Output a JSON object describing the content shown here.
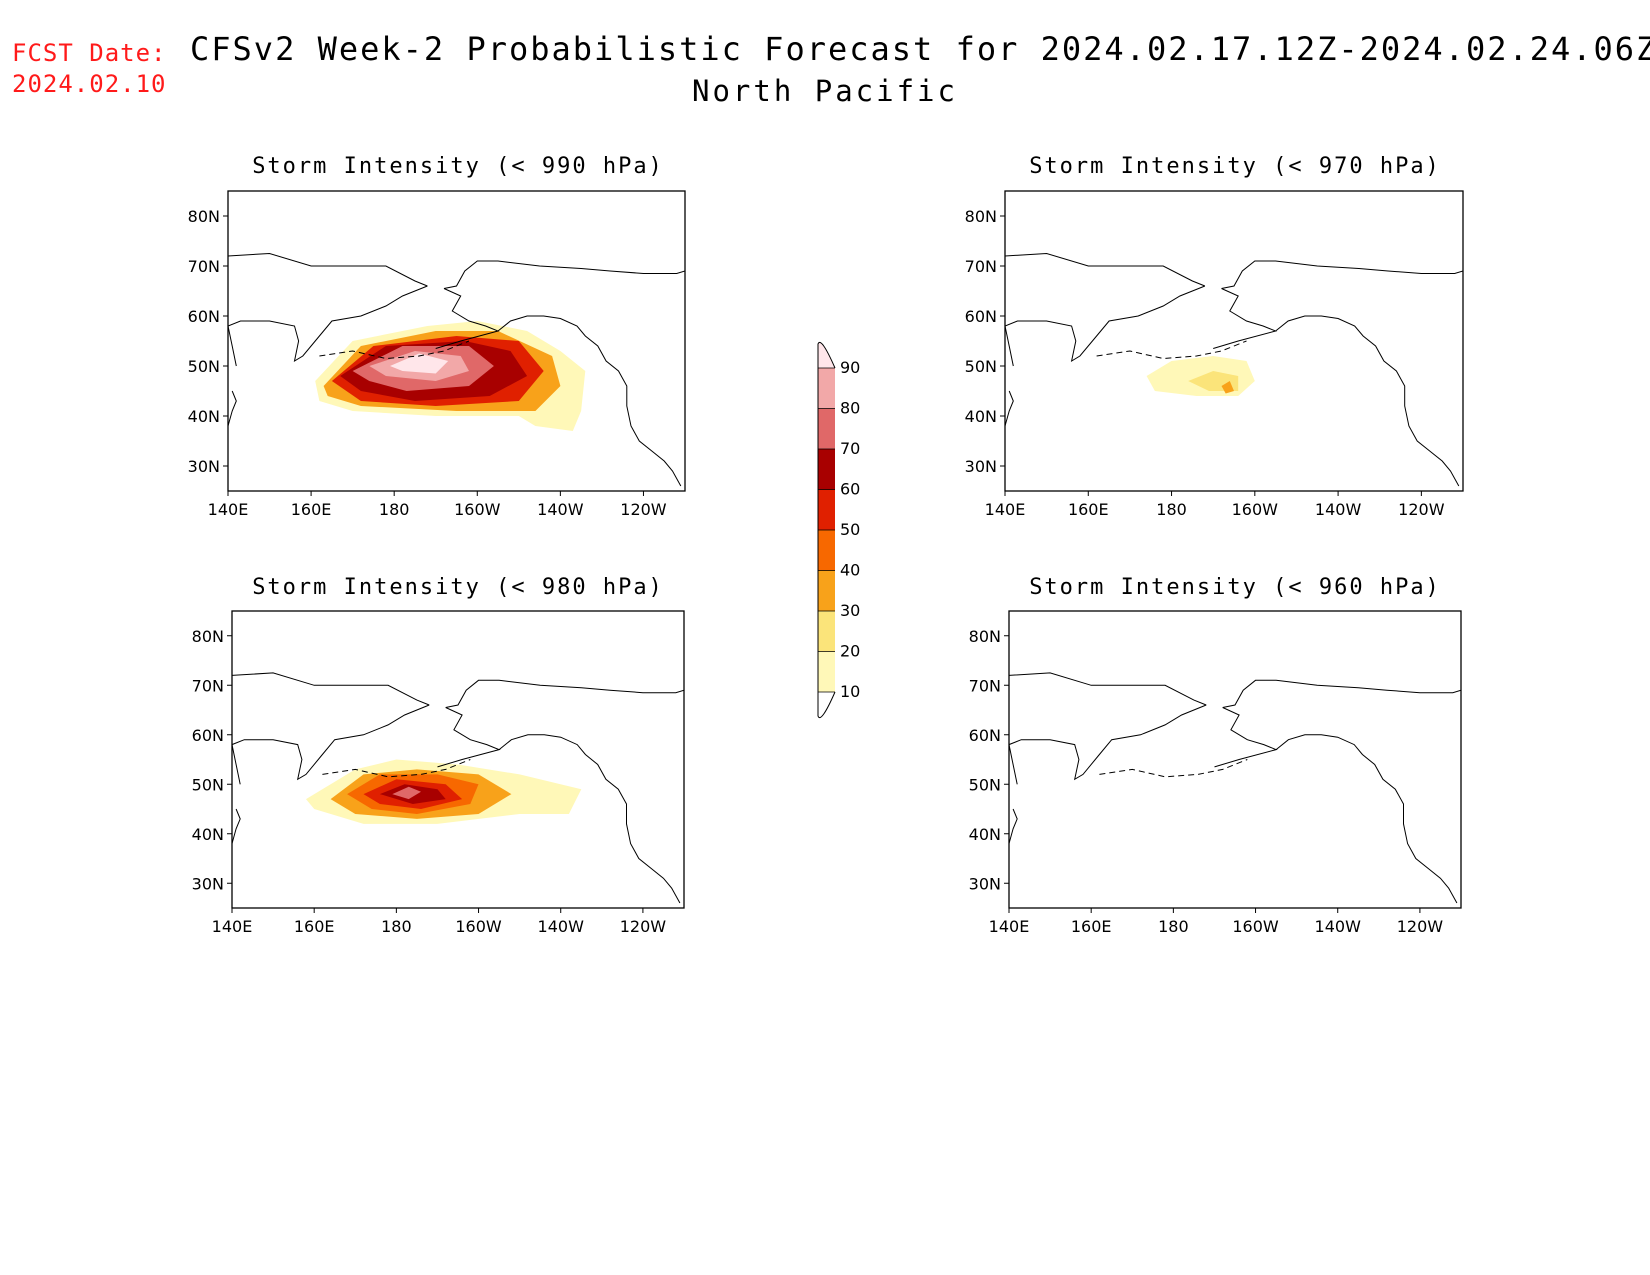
{
  "forecast_date": {
    "label": "FCST Date:",
    "value": "2024.02.10"
  },
  "title": "CFSv2 Week-2 Probabilistic Forecast for 2024.02.17.12Z-2024.02.24.06Z",
  "region": "North Pacific",
  "axes": {
    "lat_ticks": [
      "80N",
      "70N",
      "60N",
      "50N",
      "40N",
      "30N"
    ],
    "lon_ticks": [
      "140E",
      "160E",
      "180",
      "160W",
      "140W",
      "120W"
    ]
  },
  "colorbar": {
    "levels": [
      "10",
      "20",
      "30",
      "40",
      "50",
      "60",
      "70",
      "80",
      "90"
    ],
    "colors": [
      "#fff8b8",
      "#fbe47a",
      "#f8a21a",
      "#f76800",
      "#e02000",
      "#a80000",
      "#e06868",
      "#f2a8a8",
      "#ffe6ea"
    ]
  },
  "panels": [
    {
      "title": "Storm Intensity (< 990 hPa)",
      "max_probability": 90
    },
    {
      "title": "Storm Intensity (< 970 hPa)",
      "max_probability": 30
    },
    {
      "title": "Storm Intensity (< 980 hPa)",
      "max_probability": 80
    },
    {
      "title": "Storm Intensity (< 960 hPa)",
      "max_probability": 0
    }
  ]
}
